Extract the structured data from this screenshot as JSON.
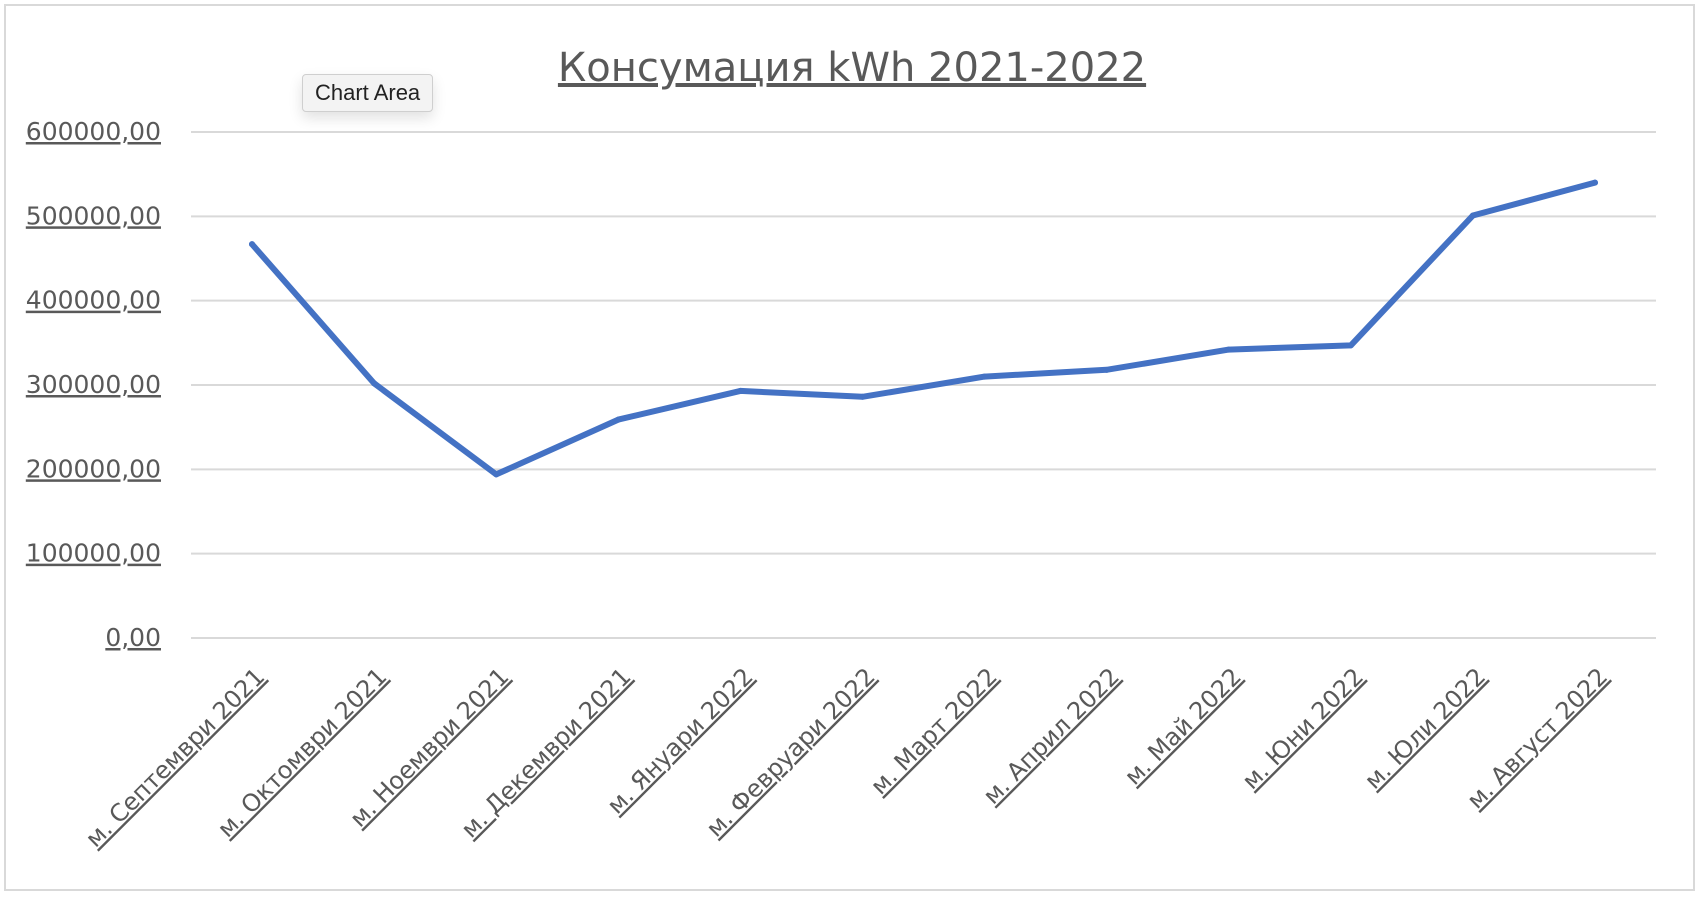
{
  "tooltip": {
    "label": "Chart Area"
  },
  "colors": {
    "line": "#4472C4",
    "grid": "#d9d9d9",
    "text": "#595959",
    "frame": "#d9d9d9"
  },
  "chart_data": {
    "type": "line",
    "title": "Консумация kWh 2021-2022",
    "xlabel": "",
    "ylabel": "",
    "ylim": [
      0,
      600000
    ],
    "y_ticks": [
      "0,00",
      "100000,00",
      "200000,00",
      "300000,00",
      "400000,00",
      "500000,00",
      "600000,00"
    ],
    "grid": true,
    "legend": "none",
    "categories": [
      "м. Септември 2021",
      "м. Октомври 2021",
      "м. Ноември 2021",
      "м. Декември 2021",
      "м. Януари 2022",
      "м. Февруари 2022",
      "м. Март 2022",
      "м. Април 2022",
      "м. Май 2022",
      "м. Юни 2022",
      "м. Юли 2022",
      "м. Август 2022"
    ],
    "series": [
      {
        "values": [
          467000,
          302000,
          194000,
          259000,
          293000,
          286000,
          310000,
          318000,
          342000,
          347000,
          501000,
          540000
        ]
      }
    ]
  }
}
